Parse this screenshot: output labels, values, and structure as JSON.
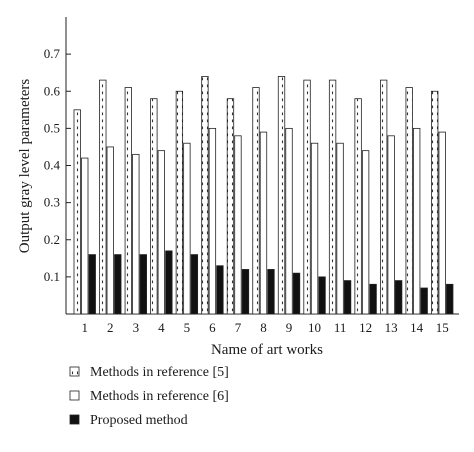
{
  "chart_data": {
    "type": "bar",
    "xlabel": "Name of art works",
    "ylabel": "Output gray level parameters",
    "ylim": [
      0,
      0.8
    ],
    "yticks": [
      0.1,
      0.2,
      0.3,
      0.4,
      0.5,
      0.6,
      0.7
    ],
    "categories": [
      "1",
      "2",
      "3",
      "4",
      "5",
      "6",
      "7",
      "8",
      "9",
      "10",
      "11",
      "12",
      "13",
      "14",
      "15"
    ],
    "series": [
      {
        "name": "Methods in reference [5]",
        "pattern": "dashed-hatch",
        "values": [
          0.55,
          0.63,
          0.61,
          0.58,
          0.6,
          0.64,
          0.58,
          0.61,
          0.64,
          0.63,
          0.63,
          0.58,
          0.63,
          0.61,
          0.6
        ]
      },
      {
        "name": "Methods in reference [6]",
        "pattern": "empty",
        "values": [
          0.42,
          0.45,
          0.43,
          0.44,
          0.46,
          0.5,
          0.48,
          0.49,
          0.5,
          0.46,
          0.46,
          0.44,
          0.48,
          0.5,
          0.49
        ]
      },
      {
        "name": "Proposed method",
        "pattern": "solid-black",
        "values": [
          0.16,
          0.16,
          0.16,
          0.17,
          0.16,
          0.13,
          0.12,
          0.12,
          0.11,
          0.1,
          0.09,
          0.08,
          0.09,
          0.07,
          0.08
        ]
      }
    ],
    "grid": false,
    "legend_position": "bottom-left",
    "colors": {
      "axis": "#222222",
      "solid": "#111111",
      "hatch": "#333333"
    }
  }
}
